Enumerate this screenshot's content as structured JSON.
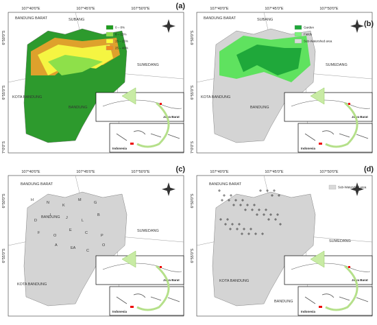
{
  "panels": [
    {
      "letter": "(a)",
      "lon_labels": [
        "107°40'0\"E",
        "107°45'0\"E",
        "107°50'0\"E"
      ],
      "lat_labels": [
        "6°50'0\"S",
        "6°55'0\"S",
        "7°0'0\"S"
      ],
      "places": [
        "BANDUNG BARAT",
        "SUBANG",
        "SUMEDANG",
        "KOTA BANDUNG",
        "BANDUNG"
      ],
      "legend": [
        {
          "label": "0 – 8%",
          "color": "#1f9e1f"
        },
        {
          "label": "8 – 15%",
          "color": "#8ee04a"
        },
        {
          "label": "15 – 25%",
          "color": "#ffff33"
        },
        {
          "label": "25 – 40%",
          "color": "#f08c1e"
        }
      ],
      "inset": [
        "Jawa Barat",
        "Indonesia"
      ]
    },
    {
      "letter": "(b)",
      "lon_labels": [
        "107°40'0\"E",
        "107°45'0\"E",
        "107°50'0\"E"
      ],
      "lat_labels": [
        "6°50'0\"S",
        "6°55'0\"S",
        "7°0'0\"S"
      ],
      "places": [
        "BANDUNG BARAT",
        "SUBANG",
        "SUMEDANG",
        "KOTA BANDUNG",
        "BANDUNG"
      ],
      "legend": [
        {
          "label": "Garden",
          "color": "#1fa83a"
        },
        {
          "label": "Fields",
          "color": "#7cf27c"
        },
        {
          "label": "Sub-Watershed area",
          "color": "#d9d9d9"
        }
      ],
      "inset": [
        "Jawa Barat",
        "Indonesia"
      ]
    },
    {
      "letter": "(c)",
      "lon_labels": [
        "107°40'0\"E",
        "107°45'0\"E",
        "107°50'0\"E"
      ],
      "lat_labels": [
        "6°50'0\"S",
        "6°55'0\"S"
      ],
      "places": [
        "BANDUNG BARAT",
        "BANDUNG",
        "SUMEDANG",
        "KOTA BANDUNG"
      ],
      "map_labels": [
        "H",
        "N",
        "K",
        "M",
        "G",
        "D",
        "I",
        "J",
        "L",
        "B",
        "F",
        "O",
        "E",
        "C",
        "P",
        "A",
        "EA",
        "C",
        "O"
      ],
      "inset": [
        "Jawa Barat",
        "Indonesia"
      ]
    },
    {
      "letter": "(d)",
      "lon_labels": [
        "107°40'0\"E",
        "107°45'0\"E",
        "107°50'0\"E"
      ],
      "lat_labels": [
        "6°50'0\"S",
        "6°55'0\"S"
      ],
      "places": [
        "BANDUNG BARAT",
        "SUMEDANG",
        "KOTA BANDUNG",
        "BANDUNG"
      ],
      "legend": [
        {
          "label": "Sub-Watershed area",
          "color": "#d9d9d9"
        }
      ],
      "inset": [
        "Jawa Barat",
        "Indonesia"
      ]
    }
  ]
}
